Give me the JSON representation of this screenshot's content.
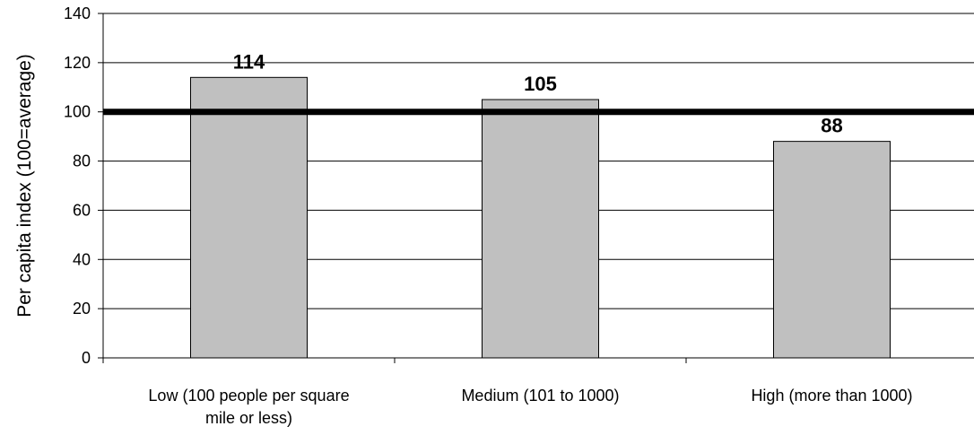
{
  "chart_data": {
    "type": "bar",
    "categories": [
      [
        "Low (100 people per square",
        "mile or less)"
      ],
      [
        "Medium (101 to 1000)"
      ],
      [
        "High (more than 1000)"
      ]
    ],
    "values": [
      114,
      105,
      88
    ],
    "data_labels": [
      "114",
      "105",
      "88"
    ],
    "title": "",
    "xlabel": "",
    "ylabel": "Per capita index (100=average)",
    "ylim": [
      0,
      140
    ],
    "yticks": [
      0,
      20,
      40,
      60,
      80,
      100,
      120,
      140
    ],
    "reference_line": 100,
    "grid": true,
    "legend": "none",
    "colors": {
      "bar_fill": "#c0c0c0",
      "bar_stroke": "#000000",
      "gridline": "#000000",
      "reference_line": "#000000"
    }
  }
}
